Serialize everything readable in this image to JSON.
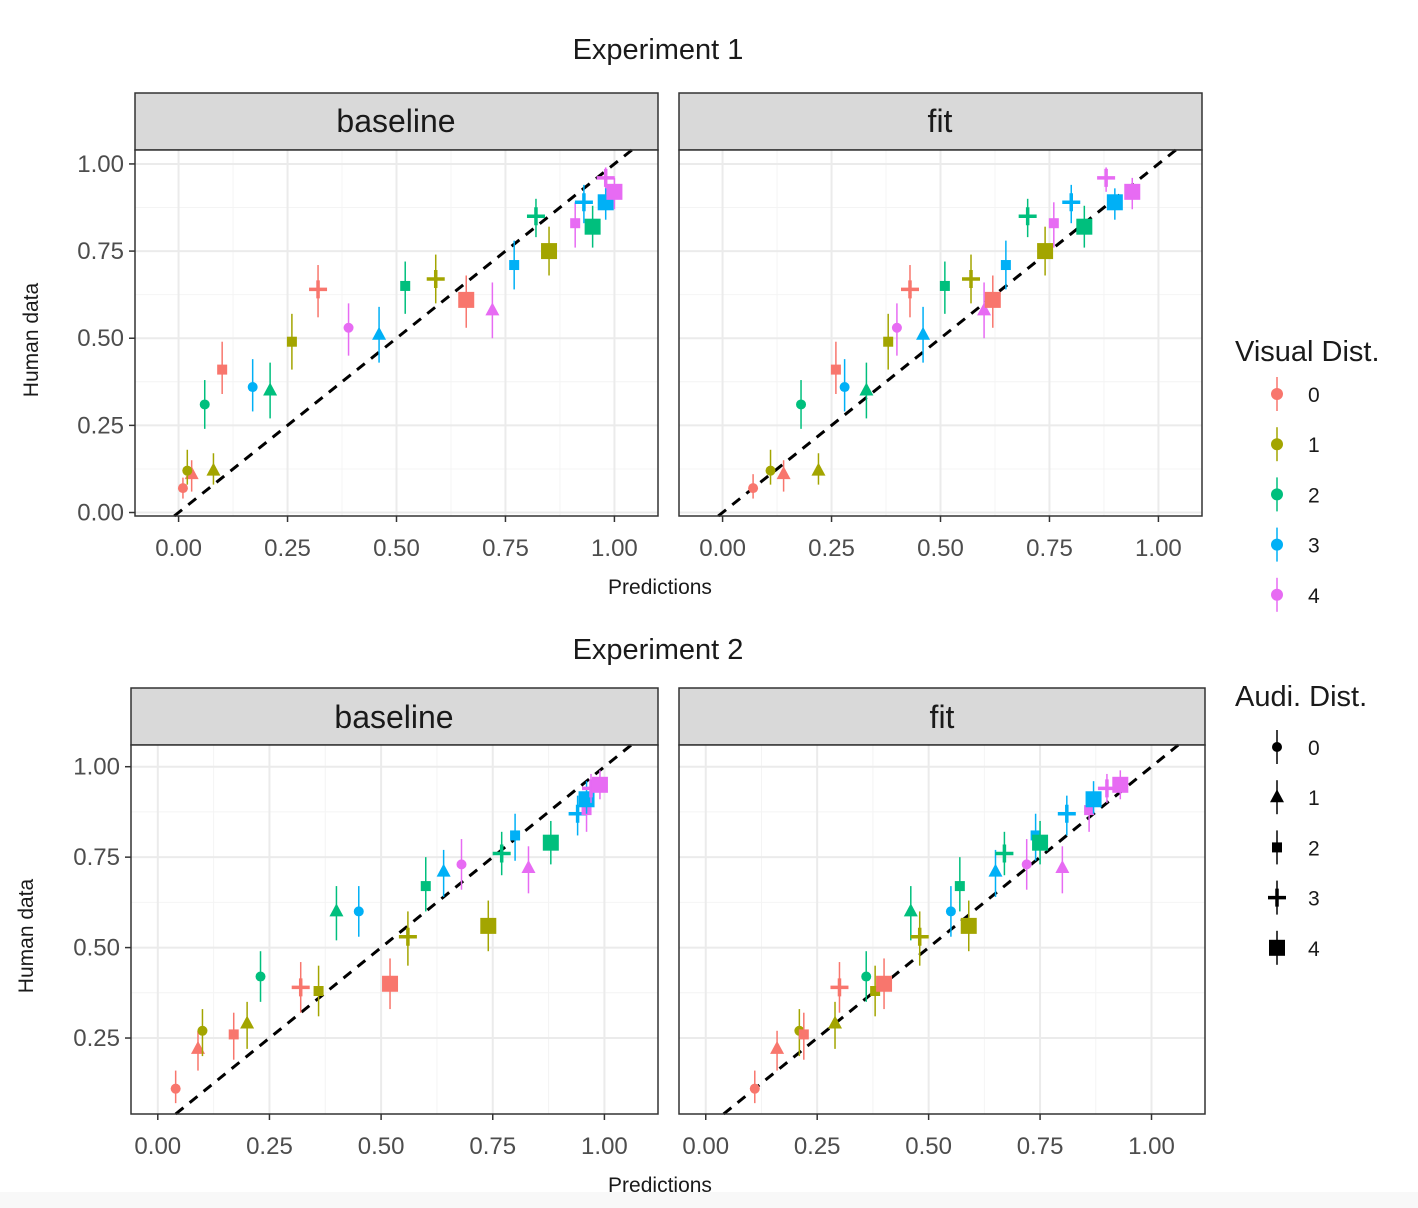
{
  "figure": {
    "colors": {
      "panel_bg": "#ffffff",
      "panel_border": "#333333",
      "grid_major": "#ebebeb",
      "grid_minor": "#f4f4f4",
      "strip_bg": "#d9d9d9",
      "diagonal": "#000000",
      "visual_dist": [
        "#F8766D",
        "#A3A500",
        "#00BF7D",
        "#00B0F6",
        "#E76BF3"
      ]
    }
  },
  "legend": {
    "visual": {
      "title": "Visual Dist.",
      "items": [
        {
          "label": "0",
          "color": "#F8766D"
        },
        {
          "label": "1",
          "color": "#A3A500"
        },
        {
          "label": "2",
          "color": "#00BF7D"
        },
        {
          "label": "3",
          "color": "#00B0F6"
        },
        {
          "label": "4",
          "color": "#E76BF3"
        }
      ]
    },
    "audi": {
      "title": "Audi. Dist.",
      "items": [
        {
          "label": "0",
          "shape": "circle"
        },
        {
          "label": "1",
          "shape": "triangle"
        },
        {
          "label": "2",
          "shape": "small-square"
        },
        {
          "label": "3",
          "shape": "cross"
        },
        {
          "label": "4",
          "shape": "big-square"
        }
      ]
    }
  },
  "chart_data": [
    {
      "type": "scatter",
      "title": "Experiment 1",
      "facet": "baseline",
      "xlabel": "Predictions",
      "ylabel": "Human data",
      "xlim": [
        -0.1,
        1.1
      ],
      "ylim": [
        -0.01,
        1.04
      ],
      "x_ticks": [
        0,
        0.25,
        0.5,
        0.75,
        1
      ],
      "x_tick_labels": [
        "0.00",
        "0.25",
        "0.50",
        "0.75",
        "1.00"
      ],
      "y_ticks": [
        0,
        0.25,
        0.5,
        0.75,
        1
      ],
      "y_tick_labels": [
        "0.00",
        "0.25",
        "0.50",
        "0.75",
        "1.00"
      ],
      "grid": true,
      "diagonal": true,
      "points": [
        {
          "vis": 0,
          "aud": 0,
          "x": 0.01,
          "y": 0.07,
          "lo": 0.04,
          "hi": 0.1
        },
        {
          "vis": 0,
          "aud": 1,
          "x": 0.03,
          "y": 0.11,
          "lo": 0.06,
          "hi": 0.15
        },
        {
          "vis": 1,
          "aud": 0,
          "x": 0.02,
          "y": 0.12,
          "lo": 0.08,
          "hi": 0.18
        },
        {
          "vis": 1,
          "aud": 1,
          "x": 0.08,
          "y": 0.12,
          "lo": 0.08,
          "hi": 0.17
        },
        {
          "vis": 2,
          "aud": 0,
          "x": 0.06,
          "y": 0.31,
          "lo": 0.24,
          "hi": 0.38
        },
        {
          "vis": 0,
          "aud": 2,
          "x": 0.1,
          "y": 0.41,
          "lo": 0.34,
          "hi": 0.49
        },
        {
          "vis": 3,
          "aud": 0,
          "x": 0.17,
          "y": 0.36,
          "lo": 0.29,
          "hi": 0.44
        },
        {
          "vis": 2,
          "aud": 1,
          "x": 0.21,
          "y": 0.35,
          "lo": 0.27,
          "hi": 0.43
        },
        {
          "vis": 1,
          "aud": 2,
          "x": 0.26,
          "y": 0.49,
          "lo": 0.41,
          "hi": 0.57
        },
        {
          "vis": 0,
          "aud": 3,
          "x": 0.32,
          "y": 0.64,
          "lo": 0.56,
          "hi": 0.71
        },
        {
          "vis": 4,
          "aud": 0,
          "x": 0.39,
          "y": 0.53,
          "lo": 0.45,
          "hi": 0.6
        },
        {
          "vis": 3,
          "aud": 1,
          "x": 0.46,
          "y": 0.51,
          "lo": 0.43,
          "hi": 0.59
        },
        {
          "vis": 2,
          "aud": 2,
          "x": 0.52,
          "y": 0.65,
          "lo": 0.57,
          "hi": 0.72
        },
        {
          "vis": 1,
          "aud": 3,
          "x": 0.59,
          "y": 0.67,
          "lo": 0.6,
          "hi": 0.74
        },
        {
          "vis": 0,
          "aud": 4,
          "x": 0.66,
          "y": 0.61,
          "lo": 0.53,
          "hi": 0.68
        },
        {
          "vis": 4,
          "aud": 1,
          "x": 0.72,
          "y": 0.58,
          "lo": 0.5,
          "hi": 0.66
        },
        {
          "vis": 3,
          "aud": 2,
          "x": 0.77,
          "y": 0.71,
          "lo": 0.64,
          "hi": 0.78
        },
        {
          "vis": 2,
          "aud": 3,
          "x": 0.82,
          "y": 0.85,
          "lo": 0.79,
          "hi": 0.9
        },
        {
          "vis": 1,
          "aud": 4,
          "x": 0.85,
          "y": 0.75,
          "lo": 0.68,
          "hi": 0.82
        },
        {
          "vis": 4,
          "aud": 2,
          "x": 0.91,
          "y": 0.83,
          "lo": 0.76,
          "hi": 0.89
        },
        {
          "vis": 3,
          "aud": 3,
          "x": 0.93,
          "y": 0.89,
          "lo": 0.83,
          "hi": 0.94
        },
        {
          "vis": 2,
          "aud": 4,
          "x": 0.95,
          "y": 0.82,
          "lo": 0.76,
          "hi": 0.88
        },
        {
          "vis": 4,
          "aud": 3,
          "x": 0.98,
          "y": 0.96,
          "lo": 0.92,
          "hi": 0.99
        },
        {
          "vis": 3,
          "aud": 4,
          "x": 0.98,
          "y": 0.89,
          "lo": 0.84,
          "hi": 0.93
        },
        {
          "vis": 4,
          "aud": 4,
          "x": 1.0,
          "y": 0.92,
          "lo": 0.87,
          "hi": 0.96
        }
      ]
    },
    {
      "type": "scatter",
      "title": "Experiment 1",
      "facet": "fit",
      "xlabel": "Predictions",
      "ylabel": "Human data",
      "xlim": [
        -0.1,
        1.1
      ],
      "ylim": [
        -0.01,
        1.04
      ],
      "x_ticks": [
        0,
        0.25,
        0.5,
        0.75,
        1
      ],
      "x_tick_labels": [
        "0.00",
        "0.25",
        "0.50",
        "0.75",
        "1.00"
      ],
      "grid": true,
      "diagonal": true,
      "points": [
        {
          "vis": 0,
          "aud": 0,
          "x": 0.07,
          "y": 0.07,
          "lo": 0.04,
          "hi": 0.11
        },
        {
          "vis": 1,
          "aud": 0,
          "x": 0.11,
          "y": 0.12,
          "lo": 0.08,
          "hi": 0.18
        },
        {
          "vis": 0,
          "aud": 1,
          "x": 0.14,
          "y": 0.11,
          "lo": 0.06,
          "hi": 0.15
        },
        {
          "vis": 2,
          "aud": 0,
          "x": 0.18,
          "y": 0.31,
          "lo": 0.24,
          "hi": 0.38
        },
        {
          "vis": 1,
          "aud": 1,
          "x": 0.22,
          "y": 0.12,
          "lo": 0.08,
          "hi": 0.17
        },
        {
          "vis": 0,
          "aud": 2,
          "x": 0.26,
          "y": 0.41,
          "lo": 0.34,
          "hi": 0.49
        },
        {
          "vis": 3,
          "aud": 0,
          "x": 0.28,
          "y": 0.36,
          "lo": 0.29,
          "hi": 0.44
        },
        {
          "vis": 2,
          "aud": 1,
          "x": 0.33,
          "y": 0.35,
          "lo": 0.27,
          "hi": 0.43
        },
        {
          "vis": 1,
          "aud": 2,
          "x": 0.38,
          "y": 0.49,
          "lo": 0.41,
          "hi": 0.57
        },
        {
          "vis": 4,
          "aud": 0,
          "x": 0.4,
          "y": 0.53,
          "lo": 0.45,
          "hi": 0.6
        },
        {
          "vis": 0,
          "aud": 3,
          "x": 0.43,
          "y": 0.64,
          "lo": 0.56,
          "hi": 0.71
        },
        {
          "vis": 3,
          "aud": 1,
          "x": 0.46,
          "y": 0.51,
          "lo": 0.43,
          "hi": 0.59
        },
        {
          "vis": 2,
          "aud": 2,
          "x": 0.51,
          "y": 0.65,
          "lo": 0.57,
          "hi": 0.72
        },
        {
          "vis": 1,
          "aud": 3,
          "x": 0.57,
          "y": 0.67,
          "lo": 0.6,
          "hi": 0.74
        },
        {
          "vis": 4,
          "aud": 1,
          "x": 0.6,
          "y": 0.58,
          "lo": 0.5,
          "hi": 0.66
        },
        {
          "vis": 0,
          "aud": 4,
          "x": 0.62,
          "y": 0.61,
          "lo": 0.53,
          "hi": 0.68
        },
        {
          "vis": 3,
          "aud": 2,
          "x": 0.65,
          "y": 0.71,
          "lo": 0.64,
          "hi": 0.78
        },
        {
          "vis": 2,
          "aud": 3,
          "x": 0.7,
          "y": 0.85,
          "lo": 0.79,
          "hi": 0.9
        },
        {
          "vis": 1,
          "aud": 4,
          "x": 0.74,
          "y": 0.75,
          "lo": 0.68,
          "hi": 0.82
        },
        {
          "vis": 4,
          "aud": 2,
          "x": 0.76,
          "y": 0.83,
          "lo": 0.76,
          "hi": 0.89
        },
        {
          "vis": 3,
          "aud": 3,
          "x": 0.8,
          "y": 0.89,
          "lo": 0.83,
          "hi": 0.94
        },
        {
          "vis": 2,
          "aud": 4,
          "x": 0.83,
          "y": 0.82,
          "lo": 0.76,
          "hi": 0.88
        },
        {
          "vis": 4,
          "aud": 3,
          "x": 0.88,
          "y": 0.96,
          "lo": 0.92,
          "hi": 0.99
        },
        {
          "vis": 3,
          "aud": 4,
          "x": 0.9,
          "y": 0.89,
          "lo": 0.84,
          "hi": 0.93
        },
        {
          "vis": 4,
          "aud": 4,
          "x": 0.94,
          "y": 0.92,
          "lo": 0.87,
          "hi": 0.96
        }
      ]
    },
    {
      "type": "scatter",
      "title": "Experiment 2",
      "facet": "baseline",
      "xlabel": "Predictions",
      "ylabel": "Human data",
      "xlim": [
        -0.06,
        1.12
      ],
      "ylim": [
        0.04,
        1.06
      ],
      "x_ticks": [
        0,
        0.25,
        0.5,
        0.75,
        1
      ],
      "x_tick_labels": [
        "0.00",
        "0.25",
        "0.50",
        "0.75",
        "1.00"
      ],
      "y_ticks": [
        0.25,
        0.5,
        0.75,
        1
      ],
      "y_tick_labels": [
        "0.25",
        "0.50",
        "0.75",
        "1.00"
      ],
      "grid": true,
      "diagonal": true,
      "points": [
        {
          "vis": 0,
          "aud": 0,
          "x": 0.04,
          "y": 0.11,
          "lo": 0.07,
          "hi": 0.16
        },
        {
          "vis": 0,
          "aud": 1,
          "x": 0.09,
          "y": 0.22,
          "lo": 0.16,
          "hi": 0.27
        },
        {
          "vis": 1,
          "aud": 0,
          "x": 0.1,
          "y": 0.27,
          "lo": 0.2,
          "hi": 0.33
        },
        {
          "vis": 0,
          "aud": 2,
          "x": 0.17,
          "y": 0.26,
          "lo": 0.19,
          "hi": 0.32
        },
        {
          "vis": 1,
          "aud": 1,
          "x": 0.2,
          "y": 0.29,
          "lo": 0.22,
          "hi": 0.35
        },
        {
          "vis": 2,
          "aud": 0,
          "x": 0.23,
          "y": 0.42,
          "lo": 0.35,
          "hi": 0.49
        },
        {
          "vis": 0,
          "aud": 3,
          "x": 0.32,
          "y": 0.39,
          "lo": 0.32,
          "hi": 0.46
        },
        {
          "vis": 1,
          "aud": 2,
          "x": 0.36,
          "y": 0.38,
          "lo": 0.31,
          "hi": 0.45
        },
        {
          "vis": 2,
          "aud": 1,
          "x": 0.4,
          "y": 0.6,
          "lo": 0.52,
          "hi": 0.67
        },
        {
          "vis": 3,
          "aud": 0,
          "x": 0.45,
          "y": 0.6,
          "lo": 0.53,
          "hi": 0.67
        },
        {
          "vis": 0,
          "aud": 4,
          "x": 0.52,
          "y": 0.4,
          "lo": 0.33,
          "hi": 0.47
        },
        {
          "vis": 1,
          "aud": 3,
          "x": 0.56,
          "y": 0.53,
          "lo": 0.45,
          "hi": 0.6
        },
        {
          "vis": 2,
          "aud": 2,
          "x": 0.6,
          "y": 0.67,
          "lo": 0.6,
          "hi": 0.75
        },
        {
          "vis": 3,
          "aud": 1,
          "x": 0.64,
          "y": 0.71,
          "lo": 0.64,
          "hi": 0.77
        },
        {
          "vis": 4,
          "aud": 0,
          "x": 0.68,
          "y": 0.73,
          "lo": 0.66,
          "hi": 0.8
        },
        {
          "vis": 1,
          "aud": 4,
          "x": 0.74,
          "y": 0.56,
          "lo": 0.49,
          "hi": 0.63
        },
        {
          "vis": 2,
          "aud": 3,
          "x": 0.77,
          "y": 0.76,
          "lo": 0.7,
          "hi": 0.82
        },
        {
          "vis": 3,
          "aud": 2,
          "x": 0.8,
          "y": 0.81,
          "lo": 0.74,
          "hi": 0.87
        },
        {
          "vis": 4,
          "aud": 1,
          "x": 0.83,
          "y": 0.72,
          "lo": 0.65,
          "hi": 0.78
        },
        {
          "vis": 2,
          "aud": 4,
          "x": 0.88,
          "y": 0.79,
          "lo": 0.73,
          "hi": 0.85
        },
        {
          "vis": 3,
          "aud": 3,
          "x": 0.94,
          "y": 0.87,
          "lo": 0.81,
          "hi": 0.92
        },
        {
          "vis": 4,
          "aud": 2,
          "x": 0.96,
          "y": 0.88,
          "lo": 0.82,
          "hi": 0.93
        },
        {
          "vis": 3,
          "aud": 4,
          "x": 0.96,
          "y": 0.91,
          "lo": 0.87,
          "hi": 0.96
        },
        {
          "vis": 4,
          "aud": 3,
          "x": 0.97,
          "y": 0.94,
          "lo": 0.9,
          "hi": 0.98
        },
        {
          "vis": 4,
          "aud": 4,
          "x": 0.99,
          "y": 0.95,
          "lo": 0.91,
          "hi": 0.99
        }
      ]
    },
    {
      "type": "scatter",
      "title": "Experiment 2",
      "facet": "fit",
      "xlabel": "Predictions",
      "ylabel": "Human data",
      "xlim": [
        -0.06,
        1.12
      ],
      "ylim": [
        0.04,
        1.06
      ],
      "x_ticks": [
        0,
        0.25,
        0.5,
        0.75,
        1
      ],
      "x_tick_labels": [
        "0.00",
        "0.25",
        "0.50",
        "0.75",
        "1.00"
      ],
      "grid": true,
      "diagonal": true,
      "points": [
        {
          "vis": 0,
          "aud": 0,
          "x": 0.11,
          "y": 0.11,
          "lo": 0.07,
          "hi": 0.16
        },
        {
          "vis": 0,
          "aud": 1,
          "x": 0.16,
          "y": 0.22,
          "lo": 0.16,
          "hi": 0.27
        },
        {
          "vis": 1,
          "aud": 0,
          "x": 0.21,
          "y": 0.27,
          "lo": 0.2,
          "hi": 0.33
        },
        {
          "vis": 0,
          "aud": 2,
          "x": 0.22,
          "y": 0.26,
          "lo": 0.19,
          "hi": 0.32
        },
        {
          "vis": 1,
          "aud": 1,
          "x": 0.29,
          "y": 0.29,
          "lo": 0.22,
          "hi": 0.35
        },
        {
          "vis": 0,
          "aud": 3,
          "x": 0.3,
          "y": 0.39,
          "lo": 0.32,
          "hi": 0.46
        },
        {
          "vis": 2,
          "aud": 0,
          "x": 0.36,
          "y": 0.42,
          "lo": 0.35,
          "hi": 0.49
        },
        {
          "vis": 1,
          "aud": 2,
          "x": 0.38,
          "y": 0.38,
          "lo": 0.31,
          "hi": 0.45
        },
        {
          "vis": 0,
          "aud": 4,
          "x": 0.4,
          "y": 0.4,
          "lo": 0.33,
          "hi": 0.47
        },
        {
          "vis": 2,
          "aud": 1,
          "x": 0.46,
          "y": 0.6,
          "lo": 0.52,
          "hi": 0.67
        },
        {
          "vis": 1,
          "aud": 3,
          "x": 0.48,
          "y": 0.53,
          "lo": 0.45,
          "hi": 0.6
        },
        {
          "vis": 3,
          "aud": 0,
          "x": 0.55,
          "y": 0.6,
          "lo": 0.53,
          "hi": 0.67
        },
        {
          "vis": 2,
          "aud": 2,
          "x": 0.57,
          "y": 0.67,
          "lo": 0.6,
          "hi": 0.75
        },
        {
          "vis": 1,
          "aud": 4,
          "x": 0.59,
          "y": 0.56,
          "lo": 0.49,
          "hi": 0.63
        },
        {
          "vis": 3,
          "aud": 1,
          "x": 0.65,
          "y": 0.71,
          "lo": 0.64,
          "hi": 0.77
        },
        {
          "vis": 2,
          "aud": 3,
          "x": 0.67,
          "y": 0.76,
          "lo": 0.7,
          "hi": 0.82
        },
        {
          "vis": 4,
          "aud": 0,
          "x": 0.72,
          "y": 0.73,
          "lo": 0.66,
          "hi": 0.8
        },
        {
          "vis": 3,
          "aud": 2,
          "x": 0.74,
          "y": 0.81,
          "lo": 0.74,
          "hi": 0.87
        },
        {
          "vis": 2,
          "aud": 4,
          "x": 0.75,
          "y": 0.79,
          "lo": 0.73,
          "hi": 0.85
        },
        {
          "vis": 4,
          "aud": 1,
          "x": 0.8,
          "y": 0.72,
          "lo": 0.65,
          "hi": 0.78
        },
        {
          "vis": 3,
          "aud": 3,
          "x": 0.81,
          "y": 0.87,
          "lo": 0.81,
          "hi": 0.92
        },
        {
          "vis": 4,
          "aud": 2,
          "x": 0.86,
          "y": 0.88,
          "lo": 0.82,
          "hi": 0.93
        },
        {
          "vis": 3,
          "aud": 4,
          "x": 0.87,
          "y": 0.91,
          "lo": 0.87,
          "hi": 0.96
        },
        {
          "vis": 4,
          "aud": 3,
          "x": 0.9,
          "y": 0.94,
          "lo": 0.9,
          "hi": 0.98
        },
        {
          "vis": 4,
          "aud": 4,
          "x": 0.93,
          "y": 0.95,
          "lo": 0.91,
          "hi": 0.99
        }
      ]
    }
  ]
}
